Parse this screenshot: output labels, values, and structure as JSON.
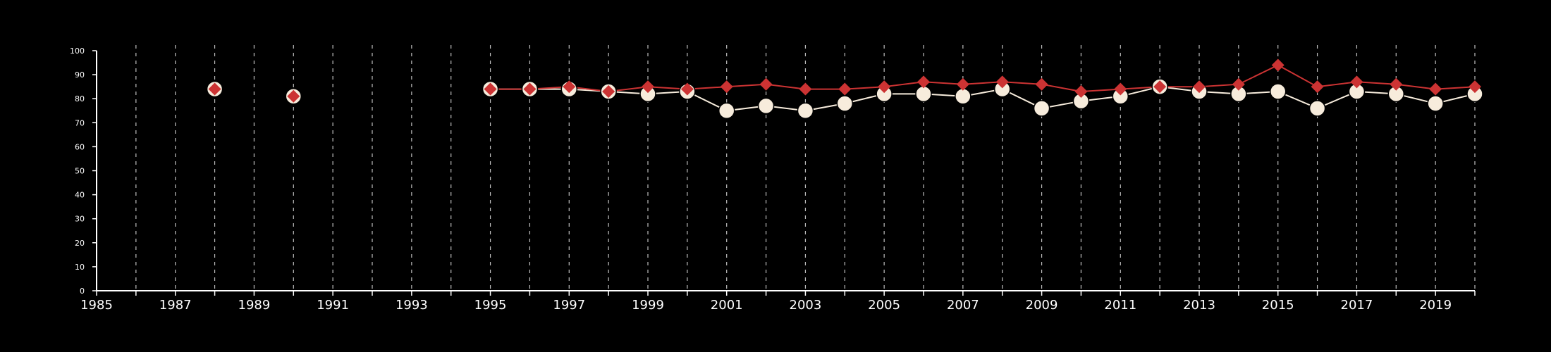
{
  "chart_data": {
    "type": "line",
    "title": "",
    "xlabel": "",
    "ylabel": "",
    "xlim": [
      1985,
      2020
    ],
    "ylim": [
      0,
      100
    ],
    "y_ticks": [
      0,
      10,
      20,
      30,
      40,
      50,
      60,
      70,
      80,
      90,
      100
    ],
    "x_tick_labels": [
      1985,
      1987,
      1989,
      1991,
      1993,
      1995,
      1997,
      1999,
      2001,
      2003,
      2005,
      2007,
      2009,
      2011,
      2013,
      2015,
      2017,
      2019
    ],
    "x_minor_ticks": [
      1986,
      1988,
      1990,
      1992,
      1994,
      1996,
      1998,
      2000,
      2002,
      2004,
      2006,
      2008,
      2010,
      2012,
      2014,
      2016,
      2018,
      2020
    ],
    "grid": "vertical dashed at each year",
    "legend": "none",
    "colors": {
      "background": "#000000",
      "series_circle": "#f7ecdc",
      "series_diamond": "#cc3333"
    },
    "series": [
      {
        "marker": "circle",
        "color": "#f7ecdc",
        "x": [
          1988,
          1990,
          1995,
          1996,
          1997,
          1998,
          1999,
          2000,
          2001,
          2002,
          2003,
          2004,
          2005,
          2006,
          2007,
          2008,
          2009,
          2010,
          2011,
          2012,
          2013,
          2014,
          2015,
          2016,
          2017,
          2018,
          2019,
          2020
        ],
        "y": [
          84,
          81,
          84,
          84,
          84,
          83,
          82,
          83,
          75,
          77,
          75,
          78,
          82,
          82,
          81,
          84,
          76,
          79,
          81,
          85,
          83,
          82,
          83,
          76,
          83,
          82,
          78,
          82
        ]
      },
      {
        "marker": "diamond",
        "color": "#cc3333",
        "x": [
          1988,
          1990,
          1995,
          1996,
          1997,
          1998,
          1999,
          2000,
          2001,
          2002,
          2003,
          2004,
          2005,
          2006,
          2007,
          2008,
          2009,
          2010,
          2011,
          2012,
          2013,
          2014,
          2015,
          2016,
          2017,
          2018,
          2019,
          2020
        ],
        "y": [
          84,
          81,
          84,
          84,
          85,
          83,
          85,
          84,
          85,
          86,
          84,
          84,
          85,
          87,
          86,
          87,
          86,
          83,
          84,
          85,
          85,
          86,
          94,
          85,
          87,
          86,
          84,
          85
        ]
      }
    ]
  }
}
